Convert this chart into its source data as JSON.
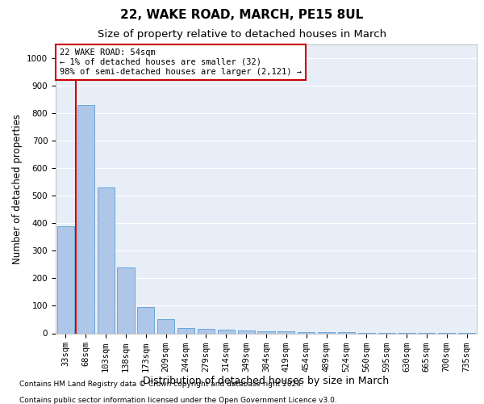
{
  "title": "22, WAKE ROAD, MARCH, PE15 8UL",
  "subtitle": "Size of property relative to detached houses in March",
  "xlabel": "Distribution of detached houses by size in March",
  "ylabel": "Number of detached properties",
  "footer_line1": "Contains HM Land Registry data © Crown copyright and database right 2024.",
  "footer_line2": "Contains public sector information licensed under the Open Government Licence v3.0.",
  "categories": [
    "33sqm",
    "68sqm",
    "103sqm",
    "138sqm",
    "173sqm",
    "209sqm",
    "244sqm",
    "279sqm",
    "314sqm",
    "349sqm",
    "384sqm",
    "419sqm",
    "454sqm",
    "489sqm",
    "524sqm",
    "560sqm",
    "595sqm",
    "630sqm",
    "665sqm",
    "700sqm",
    "735sqm"
  ],
  "values": [
    390,
    830,
    530,
    240,
    95,
    50,
    18,
    15,
    12,
    10,
    8,
    7,
    5,
    4,
    3,
    2,
    2,
    1,
    1,
    1,
    1
  ],
  "bar_color": "#aec6e8",
  "bar_edge_color": "#5a9fd4",
  "background_color": "#e8eef8",
  "grid_color": "#ffffff",
  "annotation_text": "22 WAKE ROAD: 54sqm\n← 1% of detached houses are smaller (32)\n98% of semi-detached houses are larger (2,121) →",
  "annotation_box_color": "#ffffff",
  "annotation_box_edge": "#cc0000",
  "vline_color": "#cc0000",
  "ylim": [
    0,
    1050
  ],
  "yticks": [
    0,
    100,
    200,
    300,
    400,
    500,
    600,
    700,
    800,
    900,
    1000
  ],
  "title_fontsize": 11,
  "subtitle_fontsize": 9.5,
  "tick_fontsize": 7.5,
  "ylabel_fontsize": 8.5,
  "xlabel_fontsize": 9,
  "annot_fontsize": 7.5,
  "footer_fontsize": 6.5
}
